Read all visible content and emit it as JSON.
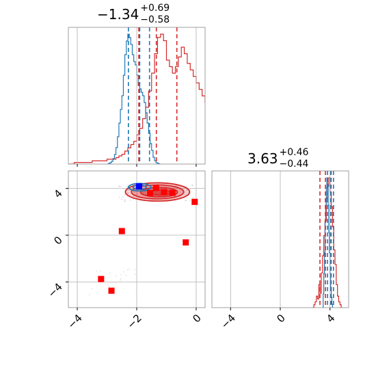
{
  "chart_data": {
    "type": "corner",
    "grid": true,
    "colors": {
      "red": "#d62728",
      "blue": "#1f77b4",
      "square_red": "#ff0000",
      "square_blue": "#0000ff"
    },
    "titles": [
      {
        "main": "−1.34",
        "plus": "+0.69",
        "minus": "−0.58"
      },
      {
        "main": "3.63",
        "plus": "+0.46",
        "minus": "−0.44"
      }
    ],
    "tick_labels": {
      "x0": [
        "−4",
        "−2",
        "0"
      ],
      "y1": [
        "4",
        "0",
        "−4"
      ],
      "x1": [
        "−4",
        "0",
        "4"
      ]
    },
    "param0": {
      "xlim": [
        -4.3,
        0.3
      ],
      "ticks": [
        -4,
        -2,
        0
      ],
      "hist_red": {
        "edges_start": -4.3,
        "bin_width": 0.1,
        "counts": [
          0,
          0,
          1,
          1,
          1,
          1,
          1,
          1,
          2,
          2,
          2,
          2,
          2,
          3,
          3,
          3,
          4,
          5,
          6,
          8,
          10,
          12,
          14,
          18,
          22,
          28,
          35,
          45,
          56,
          68,
          78,
          80,
          76,
          64,
          60,
          56,
          60,
          66,
          72,
          68,
          62,
          58,
          54,
          50,
          46,
          42,
          38,
          32,
          26,
          18,
          12,
          8,
          6,
          4,
          2,
          1
        ]
      },
      "hist_blue": {
        "edges_start": -3.0,
        "bin_width": 0.05,
        "counts": [
          0,
          1,
          2,
          4,
          8,
          14,
          24,
          40,
          60,
          80,
          100,
          130,
          160,
          180,
          190,
          185,
          175,
          160,
          150,
          145,
          130,
          115,
          110,
          105,
          100,
          90,
          75,
          60,
          45,
          30,
          20,
          10,
          5,
          2,
          1,
          0
        ]
      },
      "quantiles_red": [
        -1.93,
        -1.34,
        -0.65
      ],
      "quantiles_blue": [
        -2.28,
        -1.9,
        -1.57
      ]
    },
    "param1": {
      "xlim": [
        -5.5,
        5.5
      ],
      "ticks": [
        -4,
        0,
        4
      ],
      "hist_red": {
        "edges_start": 2.6,
        "bin_width": 0.1,
        "counts": [
          0,
          1,
          2,
          4,
          3,
          8,
          5,
          12,
          18,
          25,
          30,
          38,
          42,
          45,
          40,
          35,
          28,
          20,
          15,
          8,
          4,
          2,
          1,
          0
        ]
      },
      "hist_blue": {
        "edges_start": 3.4,
        "bin_width": 0.05,
        "counts": [
          0,
          4,
          10,
          16,
          25,
          30,
          35,
          38,
          36,
          30,
          22,
          16,
          10,
          6,
          3,
          1,
          0
        ]
      },
      "quantiles_red": [
        3.19,
        3.63,
        4.09
      ],
      "quantiles_blue": [
        3.8,
        4.05,
        4.28
      ]
    },
    "scatter": {
      "xlim": [
        -4.3,
        0.3
      ],
      "ylim": [
        -6.2,
        5.5
      ],
      "red_squares": [
        [
          -1.35,
          4.05
        ],
        [
          -1.55,
          3.6
        ],
        [
          -1.08,
          3.68
        ],
        [
          -0.8,
          3.62
        ],
        [
          -0.05,
          2.85
        ],
        [
          -2.5,
          0.35
        ],
        [
          -0.35,
          -0.62
        ],
        [
          -3.2,
          -3.75
        ],
        [
          -2.85,
          -4.75
        ]
      ],
      "blue_square": [
        -1.92,
        4.18
      ],
      "red_contours": [
        {
          "cx": -1.3,
          "cy": 3.7,
          "rx": 1.08,
          "ry": 0.78,
          "opacity": 0.35
        },
        {
          "cx": -1.3,
          "cy": 3.7,
          "rx": 0.88,
          "ry": 0.6,
          "opacity": 0.5
        },
        {
          "cx": -1.25,
          "cy": 3.68,
          "rx": 0.62,
          "ry": 0.4,
          "opacity": 0.7
        },
        {
          "cx": -1.2,
          "cy": 3.65,
          "rx": 0.35,
          "ry": 0.22,
          "opacity": 0.9
        }
      ],
      "blue_contours": [
        {
          "cx": -1.9,
          "cy": 4.1,
          "rx": 0.38,
          "ry": 0.32
        },
        {
          "cx": -1.9,
          "cy": 4.1,
          "rx": 0.22,
          "ry": 0.18
        }
      ]
    }
  }
}
